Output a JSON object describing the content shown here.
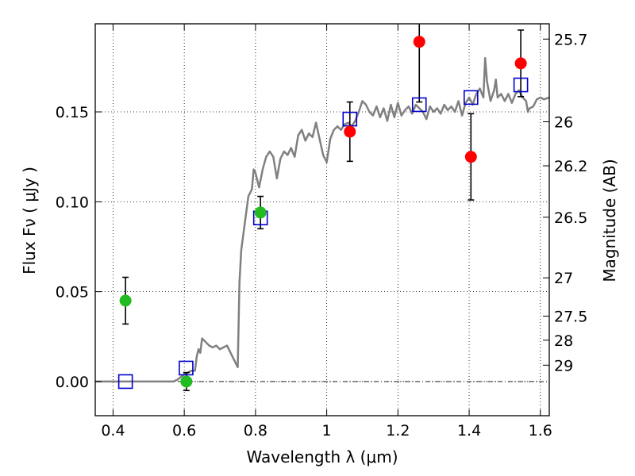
{
  "chart_data": {
    "type": "scatter",
    "xlabel": "Wavelength  λ (μm)",
    "ylabel": "Flux  Fν ( μJy )",
    "y2label": "Magnitude (AB)",
    "xlim": [
      0.35,
      1.625
    ],
    "ylim": [
      -0.019,
      0.199
    ],
    "grid": true,
    "x_ticks": [
      {
        "v": 0.4,
        "label": "0.4"
      },
      {
        "v": 0.6,
        "label": "0.6"
      },
      {
        "v": 0.8,
        "label": "0.8"
      },
      {
        "v": 1.0,
        "label": "1"
      },
      {
        "v": 1.2,
        "label": "1.2"
      },
      {
        "v": 1.4,
        "label": "1.4"
      },
      {
        "v": 1.6,
        "label": "1.6"
      }
    ],
    "y_ticks": [
      {
        "v": 0.0,
        "label": "0.00"
      },
      {
        "v": 0.05,
        "label": "0.05"
      },
      {
        "v": 0.1,
        "label": "0.10"
      },
      {
        "v": 0.15,
        "label": "0.15"
      }
    ],
    "mag_ticks": [
      {
        "v": 0.1905,
        "label": "25.7"
      },
      {
        "v": 0.1445,
        "label": "26"
      },
      {
        "v": 0.12,
        "label": "26.2"
      },
      {
        "v": 0.0914,
        "label": "26.5"
      },
      {
        "v": 0.0577,
        "label": "27"
      },
      {
        "v": 0.0364,
        "label": "27.5"
      },
      {
        "v": 0.023,
        "label": "28"
      },
      {
        "v": 0.0091,
        "label": "29"
      }
    ],
    "sed_model": {
      "color": "#808080",
      "points": [
        [
          0.35,
          0.0
        ],
        [
          0.57,
          0.0
        ],
        [
          0.58,
          0.001
        ],
        [
          0.6,
          0.004
        ],
        [
          0.62,
          0.006
        ],
        [
          0.63,
          0.006
        ],
        [
          0.635,
          0.014
        ],
        [
          0.64,
          0.018
        ],
        [
          0.645,
          0.016
        ],
        [
          0.65,
          0.024
        ],
        [
          0.66,
          0.022
        ],
        [
          0.67,
          0.02
        ],
        [
          0.68,
          0.019
        ],
        [
          0.69,
          0.02
        ],
        [
          0.7,
          0.018
        ],
        [
          0.71,
          0.019
        ],
        [
          0.72,
          0.02
        ],
        [
          0.73,
          0.016
        ],
        [
          0.745,
          0.01
        ],
        [
          0.75,
          0.008
        ],
        [
          0.755,
          0.055
        ],
        [
          0.76,
          0.073
        ],
        [
          0.77,
          0.088
        ],
        [
          0.78,
          0.103
        ],
        [
          0.79,
          0.107
        ],
        [
          0.795,
          0.118
        ],
        [
          0.8,
          0.116
        ],
        [
          0.81,
          0.108
        ],
        [
          0.82,
          0.118
        ],
        [
          0.83,
          0.125
        ],
        [
          0.84,
          0.128
        ],
        [
          0.85,
          0.125
        ],
        [
          0.86,
          0.113
        ],
        [
          0.87,
          0.124
        ],
        [
          0.88,
          0.128
        ],
        [
          0.89,
          0.126
        ],
        [
          0.9,
          0.13
        ],
        [
          0.91,
          0.125
        ],
        [
          0.92,
          0.137
        ],
        [
          0.93,
          0.14
        ],
        [
          0.94,
          0.134
        ],
        [
          0.95,
          0.138
        ],
        [
          0.96,
          0.136
        ],
        [
          0.97,
          0.144
        ],
        [
          0.98,
          0.135
        ],
        [
          0.99,
          0.126
        ],
        [
          1.0,
          0.122
        ],
        [
          1.01,
          0.135
        ],
        [
          1.02,
          0.14
        ],
        [
          1.03,
          0.142
        ],
        [
          1.04,
          0.14
        ],
        [
          1.05,
          0.143
        ],
        [
          1.06,
          0.144
        ],
        [
          1.07,
          0.142
        ],
        [
          1.08,
          0.145
        ],
        [
          1.09,
          0.15
        ],
        [
          1.1,
          0.156
        ],
        [
          1.11,
          0.154
        ],
        [
          1.12,
          0.15
        ],
        [
          1.13,
          0.148
        ],
        [
          1.14,
          0.153
        ],
        [
          1.15,
          0.147
        ],
        [
          1.16,
          0.152
        ],
        [
          1.17,
          0.145
        ],
        [
          1.18,
          0.154
        ],
        [
          1.19,
          0.147
        ],
        [
          1.2,
          0.155
        ],
        [
          1.21,
          0.148
        ],
        [
          1.22,
          0.151
        ],
        [
          1.23,
          0.153
        ],
        [
          1.24,
          0.149
        ],
        [
          1.25,
          0.154
        ],
        [
          1.26,
          0.152
        ],
        [
          1.27,
          0.15
        ],
        [
          1.28,
          0.146
        ],
        [
          1.29,
          0.153
        ],
        [
          1.3,
          0.15
        ],
        [
          1.31,
          0.152
        ],
        [
          1.32,
          0.149
        ],
        [
          1.33,
          0.154
        ],
        [
          1.34,
          0.151
        ],
        [
          1.35,
          0.153
        ],
        [
          1.36,
          0.15
        ],
        [
          1.37,
          0.156
        ],
        [
          1.38,
          0.148
        ],
        [
          1.39,
          0.155
        ],
        [
          1.4,
          0.158
        ],
        [
          1.41,
          0.154
        ],
        [
          1.42,
          0.16
        ],
        [
          1.43,
          0.163
        ],
        [
          1.44,
          0.158
        ],
        [
          1.445,
          0.18
        ],
        [
          1.45,
          0.167
        ],
        [
          1.46,
          0.156
        ],
        [
          1.47,
          0.162
        ],
        [
          1.475,
          0.168
        ],
        [
          1.48,
          0.158
        ],
        [
          1.49,
          0.16
        ],
        [
          1.5,
          0.156
        ],
        [
          1.51,
          0.16
        ],
        [
          1.52,
          0.155
        ],
        [
          1.53,
          0.16
        ],
        [
          1.54,
          0.162
        ],
        [
          1.55,
          0.158
        ],
        [
          1.56,
          0.156
        ],
        [
          1.565,
          0.15
        ],
        [
          1.57,
          0.152
        ],
        [
          1.58,
          0.153
        ],
        [
          1.59,
          0.157
        ],
        [
          1.6,
          0.158
        ],
        [
          1.61,
          0.157
        ],
        [
          1.625,
          0.158
        ]
      ]
    },
    "model_photometry": {
      "color": "#0000cc",
      "marker": "open-square",
      "points": [
        {
          "x": 0.435,
          "y": 0.0
        },
        {
          "x": 0.605,
          "y": 0.0075
        },
        {
          "x": 0.814,
          "y": 0.091
        },
        {
          "x": 1.065,
          "y": 0.146
        },
        {
          "x": 1.26,
          "y": 0.154
        },
        {
          "x": 1.405,
          "y": 0.158
        },
        {
          "x": 1.545,
          "y": 0.165
        }
      ]
    },
    "observed_optical": {
      "color": "#22bb22",
      "marker": "filled-circle",
      "points": [
        {
          "x": 0.435,
          "y": 0.045,
          "err": 0.013
        },
        {
          "x": 0.606,
          "y": 0.0,
          "err": 0.005
        },
        {
          "x": 0.814,
          "y": 0.094,
          "err": 0.009
        }
      ]
    },
    "observed_nir": {
      "color": "#ff0000",
      "marker": "filled-circle",
      "points": [
        {
          "x": 1.065,
          "y": 0.139,
          "err": 0.0165
        },
        {
          "x": 1.26,
          "y": 0.189,
          "err": 0.0335
        },
        {
          "x": 1.405,
          "y": 0.125,
          "err": 0.024
        },
        {
          "x": 1.545,
          "y": 0.177,
          "err": 0.0185
        }
      ]
    }
  }
}
